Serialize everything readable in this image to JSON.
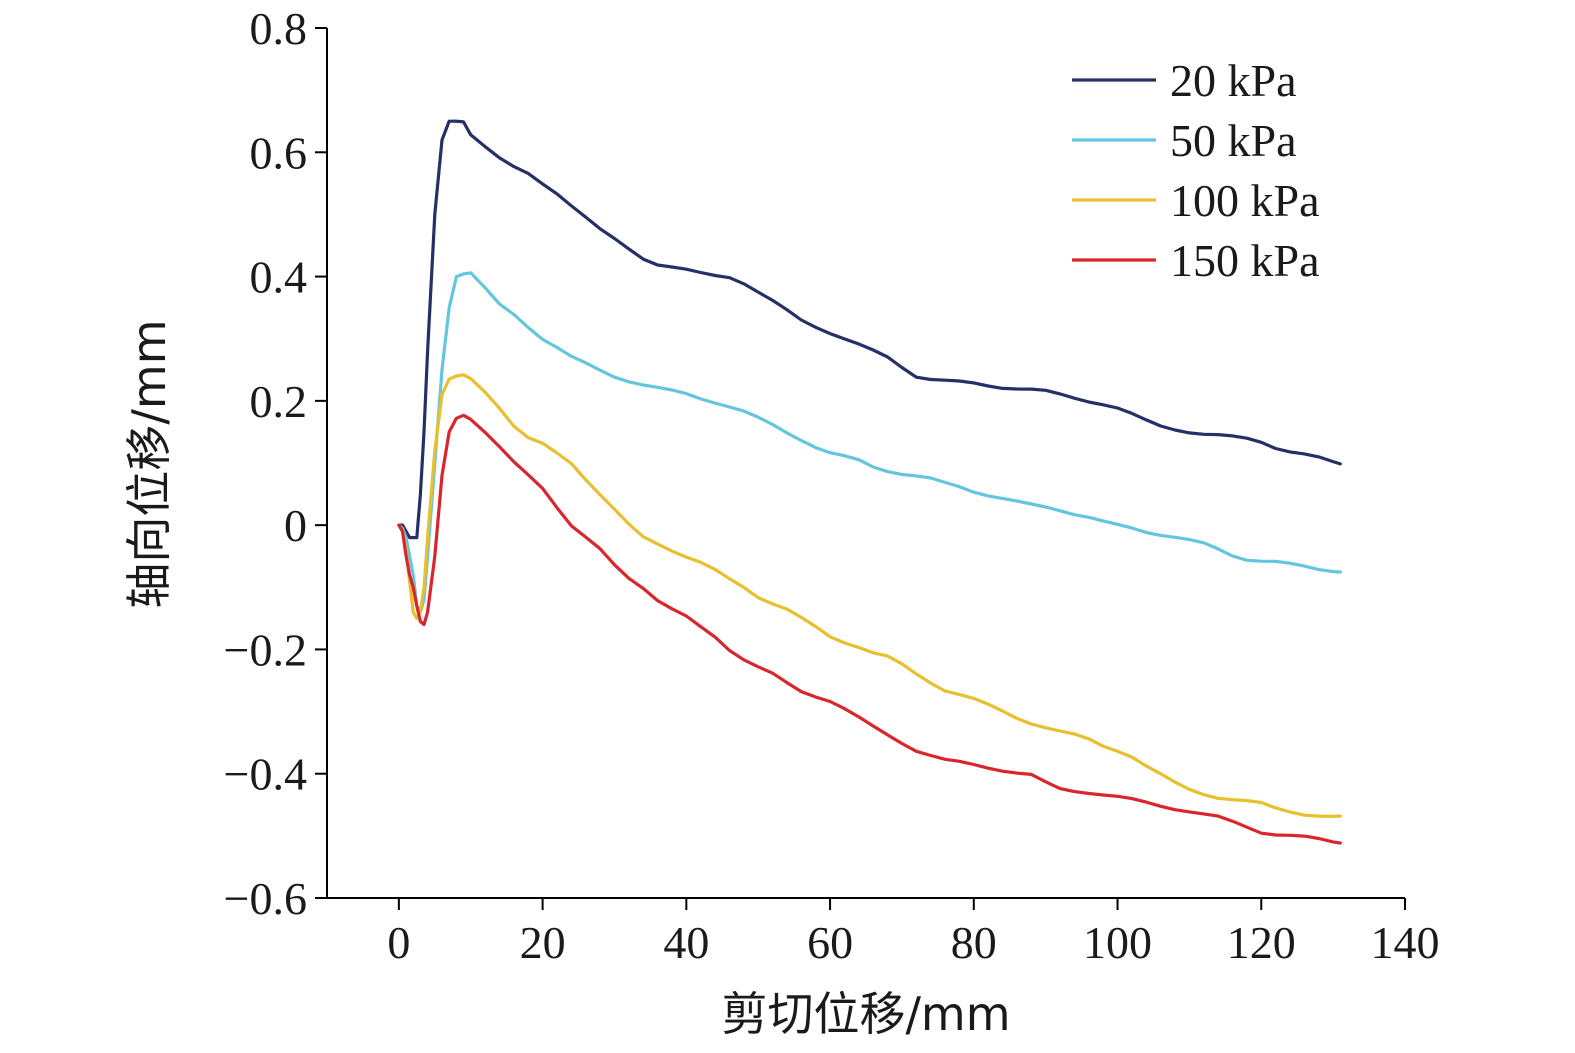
{
  "chart_data": {
    "type": "line",
    "xlabel": "剪切位移/mm",
    "ylabel": "轴向位移/mm",
    "xlim": [
      -10,
      140
    ],
    "ylim": [
      -0.6,
      0.8
    ],
    "x_ticks": [
      0,
      20,
      40,
      60,
      80,
      100,
      120,
      140
    ],
    "x_tick_labels": [
      "0",
      "20",
      "40",
      "60",
      "80",
      "100",
      "120",
      "140"
    ],
    "y_ticks": [
      0.8,
      0.6,
      0.4,
      0.2,
      0,
      -0.2,
      -0.4,
      -0.6
    ],
    "y_tick_labels": [
      "0.8",
      "0.6",
      "0.4",
      "0.2",
      "0",
      "−0.2",
      "−0.4",
      "−0.6"
    ],
    "grid": false,
    "legend_position": "top-right",
    "series": [
      {
        "name": "20 kPa",
        "color": "#253066",
        "x": [
          0,
          0.5,
          1,
          1.5,
          2,
          2.5,
          3,
          3.5,
          4,
          5,
          6,
          7,
          8,
          9,
          10,
          12,
          14,
          16,
          18,
          20,
          22,
          24,
          26,
          28,
          30,
          32,
          34,
          36,
          38,
          40,
          42,
          44,
          46,
          48,
          50,
          52,
          54,
          56,
          58,
          60,
          62,
          64,
          66,
          68,
          70,
          72,
          74,
          76,
          78,
          80,
          82,
          84,
          86,
          88,
          90,
          92,
          94,
          96,
          98,
          100,
          102,
          104,
          106,
          108,
          110,
          112,
          114,
          116,
          118,
          120,
          122,
          124,
          126,
          128,
          130,
          131
        ],
        "y": [
          0,
          0,
          -0.01,
          -0.02,
          -0.02,
          -0.02,
          0.05,
          0.15,
          0.28,
          0.5,
          0.62,
          0.65,
          0.65,
          0.65,
          0.63,
          0.61,
          0.59,
          0.575,
          0.565,
          0.55,
          0.535,
          0.515,
          0.495,
          0.475,
          0.46,
          0.445,
          0.43,
          0.42,
          0.415,
          0.41,
          0.405,
          0.402,
          0.4,
          0.39,
          0.375,
          0.36,
          0.345,
          0.33,
          0.32,
          0.31,
          0.3,
          0.29,
          0.28,
          0.27,
          0.255,
          0.24,
          0.235,
          0.232,
          0.23,
          0.228,
          0.225,
          0.222,
          0.22,
          0.218,
          0.215,
          0.21,
          0.205,
          0.2,
          0.195,
          0.188,
          0.178,
          0.168,
          0.16,
          0.155,
          0.15,
          0.146,
          0.144,
          0.142,
          0.14,
          0.135,
          0.125,
          0.118,
          0.113,
          0.108,
          0.102,
          0.1
        ]
      },
      {
        "name": "50 kPa",
        "color": "#64c6de",
        "x": [
          0,
          0.5,
          1,
          1.5,
          2,
          2.5,
          3,
          3.5,
          4,
          5,
          6,
          7,
          8,
          9,
          10,
          12,
          14,
          16,
          18,
          20,
          22,
          24,
          26,
          28,
          30,
          32,
          34,
          36,
          38,
          40,
          42,
          44,
          46,
          48,
          50,
          52,
          54,
          56,
          58,
          60,
          62,
          64,
          66,
          68,
          70,
          72,
          74,
          76,
          78,
          80,
          82,
          84,
          86,
          88,
          90,
          92,
          94,
          96,
          98,
          100,
          102,
          104,
          106,
          108,
          110,
          112,
          114,
          116,
          118,
          120,
          122,
          124,
          126,
          128,
          130,
          131
        ],
        "y": [
          0,
          -0.005,
          -0.02,
          -0.05,
          -0.08,
          -0.13,
          -0.14,
          -0.12,
          -0.05,
          0.1,
          0.25,
          0.35,
          0.4,
          0.405,
          0.405,
          0.38,
          0.355,
          0.34,
          0.32,
          0.3,
          0.285,
          0.27,
          0.26,
          0.25,
          0.24,
          0.232,
          0.225,
          0.22,
          0.216,
          0.212,
          0.205,
          0.198,
          0.19,
          0.182,
          0.172,
          0.162,
          0.15,
          0.138,
          0.125,
          0.115,
          0.11,
          0.105,
          0.095,
          0.088,
          0.082,
          0.078,
          0.074,
          0.068,
          0.063,
          0.055,
          0.048,
          0.042,
          0.037,
          0.033,
          0.03,
          0.025,
          0.018,
          0.012,
          0.005,
          0,
          -0.004,
          -0.01,
          -0.015,
          -0.02,
          -0.025,
          -0.03,
          -0.038,
          -0.048,
          -0.055,
          -0.058,
          -0.06,
          -0.063,
          -0.066,
          -0.07,
          -0.073,
          -0.075
        ]
      },
      {
        "name": "100 kPa",
        "color": "#e8bf2d",
        "x": [
          0,
          0.5,
          1,
          1.5,
          2,
          2.5,
          3,
          3.5,
          4,
          5,
          6,
          7,
          8,
          9,
          10,
          12,
          14,
          16,
          18,
          20,
          22,
          24,
          26,
          28,
          30,
          32,
          34,
          36,
          38,
          40,
          42,
          44,
          46,
          48,
          50,
          52,
          54,
          56,
          58,
          60,
          62,
          64,
          66,
          68,
          70,
          72,
          74,
          76,
          78,
          80,
          82,
          84,
          86,
          88,
          90,
          92,
          94,
          96,
          98,
          100,
          102,
          104,
          106,
          108,
          110,
          112,
          114,
          116,
          118,
          120,
          122,
          124,
          126,
          128,
          130,
          131
        ],
        "y": [
          0,
          -0.01,
          -0.04,
          -0.09,
          -0.14,
          -0.15,
          -0.14,
          -0.1,
          -0.02,
          0.12,
          0.21,
          0.235,
          0.24,
          0.24,
          0.235,
          0.215,
          0.19,
          0.16,
          0.14,
          0.13,
          0.115,
          0.1,
          0.075,
          0.05,
          0.025,
          0,
          -0.02,
          -0.03,
          -0.04,
          -0.05,
          -0.06,
          -0.073,
          -0.088,
          -0.1,
          -0.115,
          -0.125,
          -0.135,
          -0.15,
          -0.165,
          -0.18,
          -0.188,
          -0.195,
          -0.205,
          -0.212,
          -0.225,
          -0.24,
          -0.253,
          -0.265,
          -0.272,
          -0.28,
          -0.29,
          -0.3,
          -0.31,
          -0.318,
          -0.325,
          -0.332,
          -0.338,
          -0.345,
          -0.355,
          -0.362,
          -0.372,
          -0.388,
          -0.402,
          -0.415,
          -0.425,
          -0.432,
          -0.438,
          -0.442,
          -0.445,
          -0.448,
          -0.455,
          -0.46,
          -0.465,
          -0.468,
          -0.47,
          -0.47
        ]
      },
      {
        "name": "150 kPa",
        "color": "#d9262c",
        "x": [
          0,
          0.5,
          1,
          1.5,
          2,
          2.5,
          3,
          3.5,
          4,
          5,
          6,
          7,
          8,
          9,
          10,
          12,
          14,
          16,
          18,
          20,
          22,
          24,
          26,
          28,
          30,
          32,
          34,
          36,
          38,
          40,
          42,
          44,
          46,
          48,
          50,
          52,
          54,
          56,
          58,
          60,
          62,
          64,
          66,
          68,
          70,
          72,
          74,
          76,
          78,
          80,
          82,
          84,
          86,
          88,
          90,
          92,
          94,
          96,
          98,
          100,
          102,
          104,
          106,
          108,
          110,
          112,
          114,
          116,
          118,
          120,
          122,
          124,
          126,
          128,
          130,
          131
        ],
        "y": [
          0,
          -0.01,
          -0.05,
          -0.08,
          -0.1,
          -0.13,
          -0.155,
          -0.16,
          -0.14,
          -0.05,
          0.08,
          0.15,
          0.172,
          0.178,
          0.172,
          0.15,
          0.125,
          0.1,
          0.08,
          0.06,
          0.03,
          0,
          -0.02,
          -0.04,
          -0.065,
          -0.085,
          -0.1,
          -0.12,
          -0.135,
          -0.148,
          -0.165,
          -0.18,
          -0.2,
          -0.215,
          -0.228,
          -0.24,
          -0.255,
          -0.268,
          -0.275,
          -0.282,
          -0.295,
          -0.31,
          -0.325,
          -0.338,
          -0.35,
          -0.362,
          -0.37,
          -0.378,
          -0.382,
          -0.386,
          -0.39,
          -0.394,
          -0.398,
          -0.402,
          -0.415,
          -0.425,
          -0.428,
          -0.43,
          -0.433,
          -0.437,
          -0.442,
          -0.447,
          -0.452,
          -0.456,
          -0.46,
          -0.465,
          -0.47,
          -0.478,
          -0.486,
          -0.494,
          -0.497,
          -0.499,
          -0.502,
          -0.506,
          -0.51,
          -0.51
        ]
      }
    ]
  }
}
